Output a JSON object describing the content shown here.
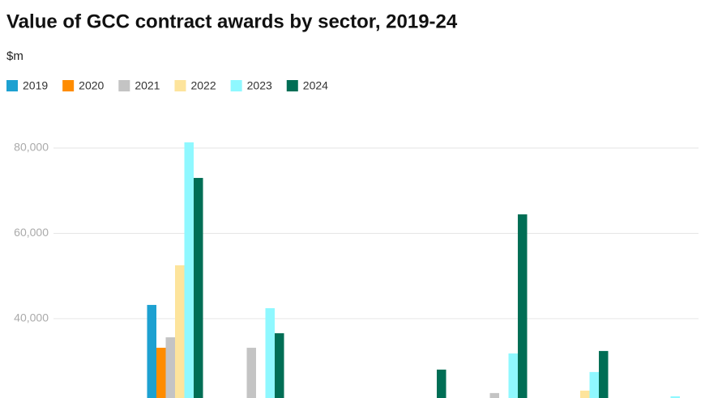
{
  "chart_data": {
    "type": "bar",
    "title": "Value of GCC contract awards by sector, 2019-24",
    "subtitle": "$m",
    "categories": [
      null,
      null,
      null,
      null,
      null,
      null,
      null,
      null
    ],
    "series": [
      {
        "name": "2019",
        "color": "#1da1d1",
        "values": [
          null,
          43220,
          null,
          null,
          null,
          null,
          null,
          null
        ]
      },
      {
        "name": "2020",
        "color": "#ff8c00",
        "values": [
          null,
          33180,
          null,
          null,
          null,
          null,
          null,
          null
        ]
      },
      {
        "name": "2021",
        "color": "#c4c4c4",
        "values": [
          null,
          35640,
          33180,
          null,
          null,
          22560,
          null,
          null
        ]
      },
      {
        "name": "2022",
        "color": "#fde49c",
        "values": [
          null,
          52510,
          null,
          null,
          null,
          null,
          23130,
          null
        ]
      },
      {
        "name": "2023",
        "color": "#8ff8ff",
        "values": [
          null,
          81330,
          42460,
          null,
          null,
          31850,
          27490,
          21800
        ]
      },
      {
        "name": "2024",
        "color": "#006e55",
        "values": [
          null,
          72990,
          36590,
          null,
          28060,
          64450,
          32420,
          null
        ]
      }
    ],
    "ylim": [
      21400,
      88000
    ],
    "yticks": [
      {
        "value": 40000,
        "label": "40,000"
      },
      {
        "value": 60000,
        "label": "60,000"
      },
      {
        "value": 80000,
        "label": "80,000"
      }
    ],
    "grid": true
  }
}
